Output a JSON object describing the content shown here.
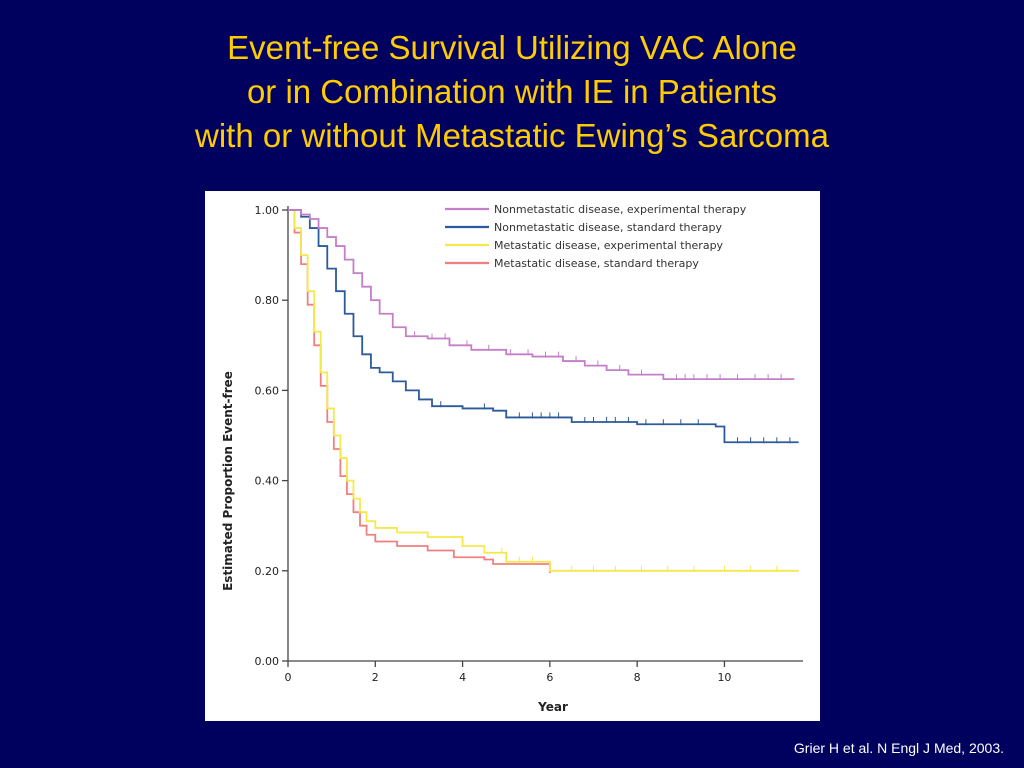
{
  "slide": {
    "title_lines": [
      "Event-free Survival Utilizing VAC Alone",
      "or in Combination with IE in Patients",
      "with or without Metastatic Ewing’s Sarcoma"
    ],
    "citation": "Grier H et al. N Engl J Med, 2003."
  },
  "colors": {
    "background": "#00005e",
    "title": "#ffcc00",
    "citation": "#ffffff"
  },
  "chart_data": {
    "type": "line",
    "title": "",
    "xlabel": "Year",
    "ylabel": "Estimated Proportion Event-free",
    "xlim": [
      0,
      11.8
    ],
    "ylim": [
      0,
      1.0
    ],
    "x_ticks": [
      0,
      2,
      4,
      6,
      8,
      10
    ],
    "x_tick_labels": [
      "0",
      "2",
      "4",
      "6",
      "8",
      "10"
    ],
    "y_ticks": [
      0,
      0.2,
      0.4,
      0.6,
      0.8,
      1.0
    ],
    "y_tick_labels": [
      "0.00",
      "0.20",
      "0.40",
      "0.60",
      "0.80",
      "1.00"
    ],
    "grid": false,
    "legend_position": "top-right",
    "series": [
      {
        "name": "Nonmetastatic disease, experimental therapy",
        "color": "#c47fc8",
        "points": [
          [
            0,
            1.0
          ],
          [
            0.3,
            0.99
          ],
          [
            0.5,
            0.98
          ],
          [
            0.7,
            0.96
          ],
          [
            0.9,
            0.94
          ],
          [
            1.1,
            0.92
          ],
          [
            1.3,
            0.89
          ],
          [
            1.5,
            0.86
          ],
          [
            1.7,
            0.83
          ],
          [
            1.9,
            0.8
          ],
          [
            2.1,
            0.77
          ],
          [
            2.4,
            0.74
          ],
          [
            2.7,
            0.72
          ],
          [
            3.2,
            0.715
          ],
          [
            3.7,
            0.7
          ],
          [
            4.2,
            0.69
          ],
          [
            5.0,
            0.68
          ],
          [
            5.6,
            0.675
          ],
          [
            6.3,
            0.665
          ],
          [
            6.8,
            0.655
          ],
          [
            7.3,
            0.645
          ],
          [
            7.8,
            0.635
          ],
          [
            8.6,
            0.625
          ],
          [
            9.5,
            0.625
          ],
          [
            11.6,
            0.625
          ]
        ],
        "censor_x": [
          2.9,
          3.3,
          3.6,
          4.1,
          4.6,
          5.1,
          5.5,
          5.9,
          6.2,
          6.6,
          7.1,
          7.6,
          8.1,
          8.9,
          9.1,
          9.3,
          9.6,
          9.9,
          10.3,
          10.7,
          11.0,
          11.3
        ]
      },
      {
        "name": "Nonmetastatic disease, standard therapy",
        "color": "#2d5a9a",
        "points": [
          [
            0,
            1.0
          ],
          [
            0.3,
            0.985
          ],
          [
            0.5,
            0.96
          ],
          [
            0.7,
            0.92
          ],
          [
            0.9,
            0.87
          ],
          [
            1.1,
            0.82
          ],
          [
            1.3,
            0.77
          ],
          [
            1.5,
            0.72
          ],
          [
            1.7,
            0.68
          ],
          [
            1.9,
            0.65
          ],
          [
            2.1,
            0.64
          ],
          [
            2.4,
            0.62
          ],
          [
            2.7,
            0.6
          ],
          [
            3.0,
            0.58
          ],
          [
            3.3,
            0.565
          ],
          [
            4.0,
            0.56
          ],
          [
            4.7,
            0.555
          ],
          [
            5.0,
            0.54
          ],
          [
            6.5,
            0.53
          ],
          [
            8.0,
            0.525
          ],
          [
            9.8,
            0.52
          ],
          [
            10.0,
            0.485
          ],
          [
            11.7,
            0.485
          ]
        ],
        "censor_x": [
          3.5,
          4.5,
          5.0,
          5.3,
          5.6,
          5.8,
          6.0,
          6.2,
          6.5,
          6.8,
          7.0,
          7.3,
          7.5,
          7.8,
          8.2,
          8.6,
          9.0,
          9.4,
          10.3,
          10.6,
          10.9,
          11.2,
          11.5
        ]
      },
      {
        "name": "Metastatic disease, experimental therapy",
        "color": "#f5e84a",
        "points": [
          [
            0,
            1.0
          ],
          [
            0.15,
            0.96
          ],
          [
            0.3,
            0.9
          ],
          [
            0.45,
            0.82
          ],
          [
            0.6,
            0.73
          ],
          [
            0.75,
            0.64
          ],
          [
            0.9,
            0.56
          ],
          [
            1.05,
            0.5
          ],
          [
            1.2,
            0.45
          ],
          [
            1.35,
            0.4
          ],
          [
            1.5,
            0.36
          ],
          [
            1.65,
            0.33
          ],
          [
            1.8,
            0.31
          ],
          [
            2.0,
            0.295
          ],
          [
            2.5,
            0.285
          ],
          [
            3.2,
            0.275
          ],
          [
            4.0,
            0.255
          ],
          [
            4.5,
            0.24
          ],
          [
            5.0,
            0.22
          ],
          [
            6.0,
            0.2
          ],
          [
            11.7,
            0.2
          ]
        ],
        "censor_x": [
          4.9,
          5.3,
          5.6,
          6.5,
          7.0,
          7.5,
          8.1,
          8.7,
          9.3,
          10.0,
          10.6,
          11.2
        ]
      },
      {
        "name": "Metastatic disease, standard therapy",
        "color": "#f08080",
        "points": [
          [
            0,
            1.0
          ],
          [
            0.15,
            0.95
          ],
          [
            0.3,
            0.88
          ],
          [
            0.45,
            0.79
          ],
          [
            0.6,
            0.7
          ],
          [
            0.75,
            0.61
          ],
          [
            0.9,
            0.53
          ],
          [
            1.05,
            0.47
          ],
          [
            1.2,
            0.41
          ],
          [
            1.35,
            0.37
          ],
          [
            1.5,
            0.33
          ],
          [
            1.65,
            0.3
          ],
          [
            1.8,
            0.28
          ],
          [
            2.0,
            0.265
          ],
          [
            2.5,
            0.255
          ],
          [
            3.2,
            0.245
          ],
          [
            3.8,
            0.23
          ],
          [
            4.5,
            0.225
          ],
          [
            4.7,
            0.215
          ],
          [
            5.9,
            0.215
          ],
          [
            6.0,
            0.195
          ]
        ],
        "censor_x": []
      }
    ]
  }
}
